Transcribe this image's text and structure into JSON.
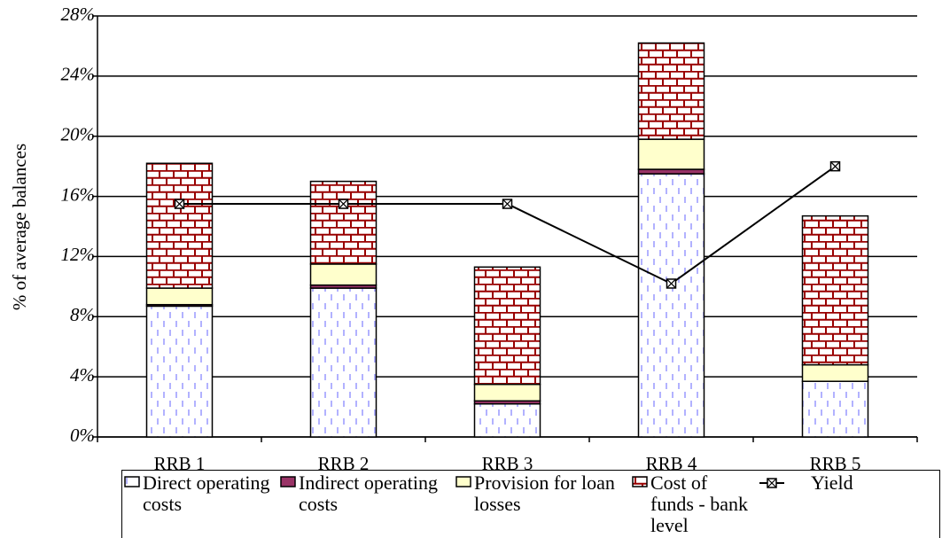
{
  "chart_data": {
    "type": "bar",
    "stacked": true,
    "y_label": "% of average balances",
    "categories": [
      "RRB 1",
      "RRB 2",
      "RRB 3",
      "RRB 4",
      "RRB 5"
    ],
    "ylim": [
      0,
      28
    ],
    "yticks": [
      {
        "value": 0,
        "label": "0%"
      },
      {
        "value": 4,
        "label": "4%"
      },
      {
        "value": 8,
        "label": "8%"
      },
      {
        "value": 12,
        "label": "12%"
      },
      {
        "value": 16,
        "label": "16%"
      },
      {
        "value": 20,
        "label": "20%"
      },
      {
        "value": 24,
        "label": "24%"
      },
      {
        "value": 28,
        "label": "28%"
      }
    ],
    "grid": true,
    "series": [
      {
        "name": "Direct operating costs",
        "color": "#9999ff",
        "pattern": "dashes",
        "values": [
          8.7,
          9.9,
          2.2,
          17.5,
          3.7
        ]
      },
      {
        "name": "Indirect operating costs",
        "color": "#993366",
        "pattern": "solid",
        "values": [
          0.1,
          0.2,
          0.2,
          0.3,
          0
        ]
      },
      {
        "name": "Provision for loan losses",
        "color": "#ffffcc",
        "pattern": "solid",
        "values": [
          1.1,
          1.4,
          1.1,
          2.0,
          1.1
        ]
      },
      {
        "name": "Cost of funds - bank level",
        "color": "#990000",
        "pattern": "bricks",
        "values": [
          8.3,
          5.5,
          7.8,
          6.4,
          9.9
        ]
      },
      {
        "name": "Yield",
        "color": "#000000",
        "type": "line",
        "values": [
          15.5,
          15.5,
          15.5,
          10.2,
          18.0
        ]
      }
    ]
  }
}
